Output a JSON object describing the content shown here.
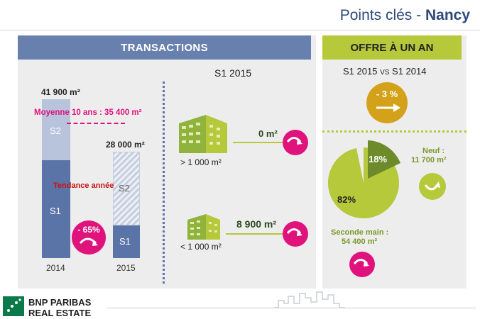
{
  "title": {
    "prefix": "Points clés - ",
    "city": "Nancy"
  },
  "transactions": {
    "header": "TRANSACTIONS",
    "period": "S1 2015",
    "bar2014_total": "41 900 m²",
    "bar2015_total": "28 000 m²",
    "average_label": "Moyenne 10 ans : 35 400 m²",
    "trend_label": "Tendance année",
    "s1": "S1",
    "s2": "S2",
    "year_2014": "2014",
    "year_2015": "2015",
    "change": "- 65%",
    "large_value": "0 m²",
    "large_label": "> 1 000 m²",
    "small_value": "8 900 m²",
    "small_label": "< 1 000 m²"
  },
  "offre": {
    "header": "OFFRE À UN AN",
    "compare_left": "S1 2015",
    "compare_vs": "VS",
    "compare_right": "S1 2014",
    "change": "- 3 %",
    "neuf_pct": "18%",
    "second_pct": "82%",
    "neuf_label": "Neuf :",
    "neuf_value": "11 700 m²",
    "second_label": "Seconde main :",
    "second_value": "54 400 m²",
    "share": {
      "neuf": 0.18,
      "seconde_main": 0.82
    }
  },
  "brand": {
    "line1": "BNP PARIBAS",
    "line2": "REAL ESTATE"
  },
  "colors": {
    "blue": "#6880ad",
    "green": "#b6c93a",
    "pink": "#e0127b",
    "gold": "#d4a21a",
    "dark_green": "#6d8b2a"
  }
}
